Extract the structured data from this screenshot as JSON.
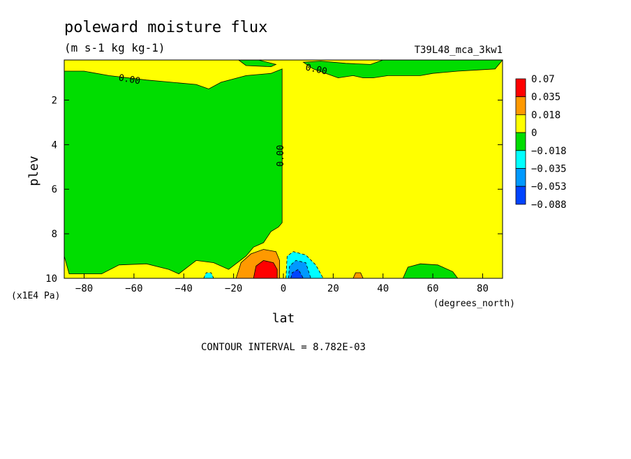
{
  "chart_data": {
    "type": "heatmap",
    "title": "poleward moisture flux",
    "subtitle": "(m s-1 kg kg-1)",
    "run_label": "T39L48_mca_3kw1",
    "xlabel": "lat",
    "x_unit": "(degrees_north)",
    "ylabel": "plev",
    "y_unit": "(x1E4 Pa)",
    "xlim": [
      -88,
      88
    ],
    "ylim": [
      0.2,
      10
    ],
    "y_inverted": true,
    "x_ticks": [
      -80,
      -60,
      -40,
      -20,
      0,
      20,
      40,
      60,
      80
    ],
    "y_ticks": [
      2,
      4,
      6,
      8,
      10
    ],
    "contour_label": "0.00",
    "footer": "CONTOUR INTERVAL = 8.782E-03",
    "legend": {
      "labels": [
        "0.07",
        "0.035",
        "0.018",
        "0",
        "−0.018",
        "−0.035",
        "−0.053",
        "−0.088"
      ],
      "colors": [
        "#ff0000",
        "#ff9900",
        "#ffff00",
        "#00dd00",
        "#00ffff",
        "#0099ff",
        "#0044ff"
      ]
    },
    "colors": {
      "positive_small": "#ffff00",
      "negative_small": "#00dd00",
      "positive_mid": "#ff9900",
      "positive_high": "#ff0000",
      "negative_mid": "#00ffff",
      "negative_high": "#0099ff",
      "negative_max": "#0044ff"
    },
    "regions": [
      {
        "sign": "positive",
        "description_value": 0.018,
        "pts": [
          [
            -88,
            0.2
          ],
          [
            88,
            0.2
          ],
          [
            88,
            10
          ],
          [
            -88,
            10
          ]
        ]
      },
      {
        "sign": "negative",
        "description_value": -0.018,
        "pts": [
          [
            -88,
            0.7
          ],
          [
            -80,
            0.7
          ],
          [
            -70,
            0.9
          ],
          [
            -55,
            1.1
          ],
          [
            -45,
            1.2
          ],
          [
            -35,
            1.3
          ],
          [
            -30,
            1.5
          ],
          [
            -25,
            1.2
          ],
          [
            -15,
            0.9
          ],
          [
            -5,
            0.8
          ],
          [
            -0.5,
            0.6
          ],
          [
            -0.5,
            7.5
          ],
          [
            -2,
            7.7
          ],
          [
            -5,
            7.9
          ],
          [
            -8,
            8.4
          ],
          [
            -12,
            8.6
          ],
          [
            -15,
            9.0
          ],
          [
            -22,
            9.6
          ],
          [
            -28,
            9.3
          ],
          [
            -35,
            9.2
          ],
          [
            -42,
            9.8
          ],
          [
            -46,
            9.6
          ],
          [
            -55,
            9.35
          ],
          [
            -66,
            9.4
          ],
          [
            -73,
            9.8
          ],
          [
            -86,
            9.8
          ],
          [
            -88,
            9.0
          ]
        ]
      },
      {
        "sign": "negative",
        "description_value": -0.018,
        "pts": [
          [
            -18,
            0.2
          ],
          [
            -15,
            0.45
          ],
          [
            -5,
            0.5
          ],
          [
            -3,
            0.4
          ],
          [
            -10,
            0.2
          ]
        ]
      },
      {
        "sign": "negative",
        "description_value": -0.018,
        "pts": [
          [
            8,
            0.3
          ],
          [
            12,
            0.6
          ],
          [
            22,
            1.0
          ],
          [
            28,
            0.9
          ],
          [
            32,
            1.0
          ],
          [
            36,
            1.0
          ],
          [
            42,
            0.9
          ],
          [
            55,
            0.9
          ],
          [
            60,
            0.8
          ],
          [
            70,
            0.7
          ],
          [
            85,
            0.6
          ],
          [
            88,
            0.2
          ],
          [
            40,
            0.2
          ],
          [
            35,
            0.4
          ],
          [
            25,
            0.35
          ],
          [
            15,
            0.25
          ]
        ]
      },
      {
        "sign": "negative",
        "description_value": -0.018,
        "pts": [
          [
            48,
            10
          ],
          [
            50,
            9.5
          ],
          [
            55,
            9.35
          ],
          [
            62,
            9.4
          ],
          [
            68,
            9.7
          ],
          [
            70,
            10
          ]
        ]
      },
      {
        "sign": "positive",
        "description_value": 0.035,
        "pts": [
          [
            -19,
            10
          ],
          [
            -17,
            9.3
          ],
          [
            -13,
            8.9
          ],
          [
            -8,
            8.7
          ],
          [
            -3,
            8.8
          ],
          [
            -1.5,
            9.2
          ],
          [
            -1.5,
            10
          ]
        ]
      },
      {
        "sign": "positive",
        "description_value": 0.035,
        "pts": [
          [
            28,
            10
          ],
          [
            29,
            9.75
          ],
          [
            31,
            9.75
          ],
          [
            32,
            10
          ]
        ]
      },
      {
        "sign": "positive",
        "description_value": 0.07,
        "pts": [
          [
            -12,
            10
          ],
          [
            -11,
            9.45
          ],
          [
            -8,
            9.2
          ],
          [
            -4,
            9.3
          ],
          [
            -2.5,
            9.6
          ],
          [
            -2.5,
            10
          ]
        ]
      },
      {
        "sign": "negative",
        "description_value": -0.035,
        "pts": [
          [
            1,
            10
          ],
          [
            1.5,
            9.0
          ],
          [
            4,
            8.8
          ],
          [
            9,
            8.95
          ],
          [
            13,
            9.4
          ],
          [
            16,
            10
          ]
        ]
      },
      {
        "sign": "negative",
        "description_value": -0.035,
        "pts": [
          [
            -32,
            10
          ],
          [
            -31,
            9.75
          ],
          [
            -29,
            9.75
          ],
          [
            -28,
            10
          ]
        ]
      },
      {
        "sign": "negative",
        "description_value": -0.053,
        "pts": [
          [
            2,
            10
          ],
          [
            2.5,
            9.45
          ],
          [
            5,
            9.2
          ],
          [
            9,
            9.3
          ],
          [
            11,
            10
          ]
        ]
      },
      {
        "sign": "negative",
        "description_value": -0.088,
        "pts": [
          [
            3,
            10
          ],
          [
            3.5,
            9.75
          ],
          [
            6,
            9.6
          ],
          [
            8,
            10
          ]
        ]
      }
    ]
  }
}
